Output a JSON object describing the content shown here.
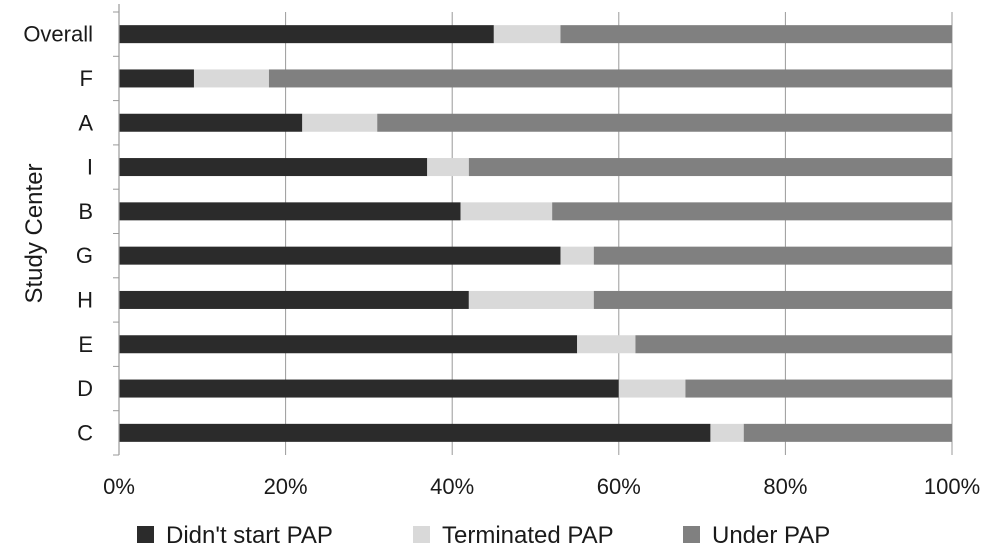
{
  "chart_data": {
    "type": "bar",
    "orientation": "horizontal",
    "stacked": true,
    "categories": [
      "Overall",
      "F",
      "A",
      "I",
      "B",
      "G",
      "H",
      "E",
      "D",
      "C"
    ],
    "series": [
      {
        "name": "Didn't start PAP",
        "values": [
          45,
          9,
          22,
          37,
          41,
          53,
          42,
          55,
          60,
          71
        ],
        "color": "#2b2b2b"
      },
      {
        "name": "Terminated PAP",
        "values": [
          8,
          9,
          9,
          5,
          11,
          4,
          15,
          7,
          8,
          4
        ],
        "color": "#d9d9d9"
      },
      {
        "name": "Under PAP",
        "values": [
          47,
          82,
          69,
          58,
          48,
          43,
          43,
          38,
          32,
          25
        ],
        "color": "#808080"
      }
    ],
    "x_ticks": [
      "0%",
      "20%",
      "40%",
      "60%",
      "80%",
      "100%"
    ],
    "xlim": [
      0,
      100
    ],
    "ylabel": "Study Center",
    "xlabel": "",
    "grid": "vertical",
    "legend_position": "bottom"
  }
}
